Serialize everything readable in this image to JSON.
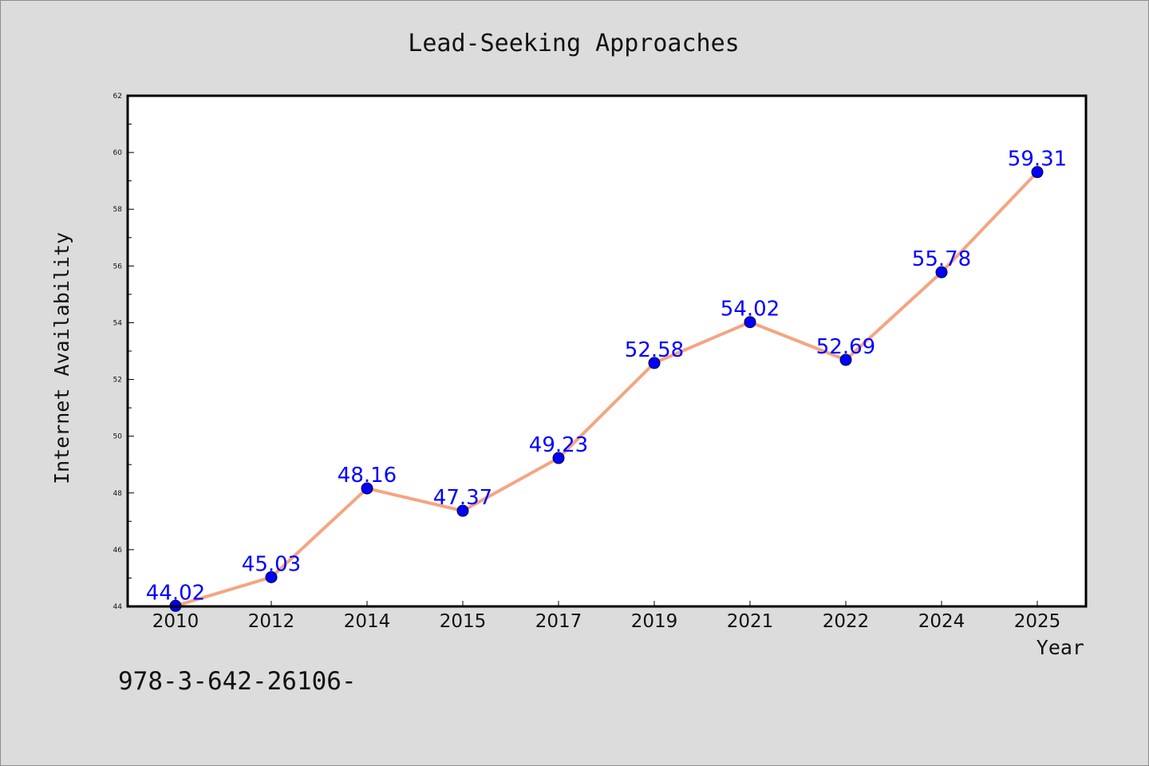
{
  "chart_data": {
    "type": "line",
    "title": "Lead-Seeking Approaches",
    "xlabel": "Year",
    "ylabel": "Internet Availability",
    "categories": [
      "2010",
      "2012",
      "2014",
      "2015",
      "2017",
      "2019",
      "2021",
      "2022",
      "2024",
      "2025"
    ],
    "series": [
      {
        "values": [
          44.02,
          45.03,
          48.16,
          47.37,
          49.23,
          52.58,
          54.02,
          52.69,
          55.78,
          59.31
        ],
        "labels": [
          "44.02",
          "45.03",
          "48.16",
          "47.37",
          "49.23",
          "52.58",
          "54.02",
          "52.69",
          "55.78",
          "59.31"
        ],
        "line_color": "#f4a582",
        "marker_color": "#0000ff",
        "label_color": "#0000ff"
      }
    ],
    "ylim": [
      44,
      62
    ],
    "yticks": [
      44,
      46,
      48,
      50,
      52,
      54,
      56,
      58,
      60,
      62
    ],
    "grid": false,
    "legend": "none"
  },
  "footer_text": "978-3-642-26106-",
  "colors": {
    "background": "#dcdcdc",
    "plot_background": "#ffffff",
    "axis": "#000000"
  }
}
